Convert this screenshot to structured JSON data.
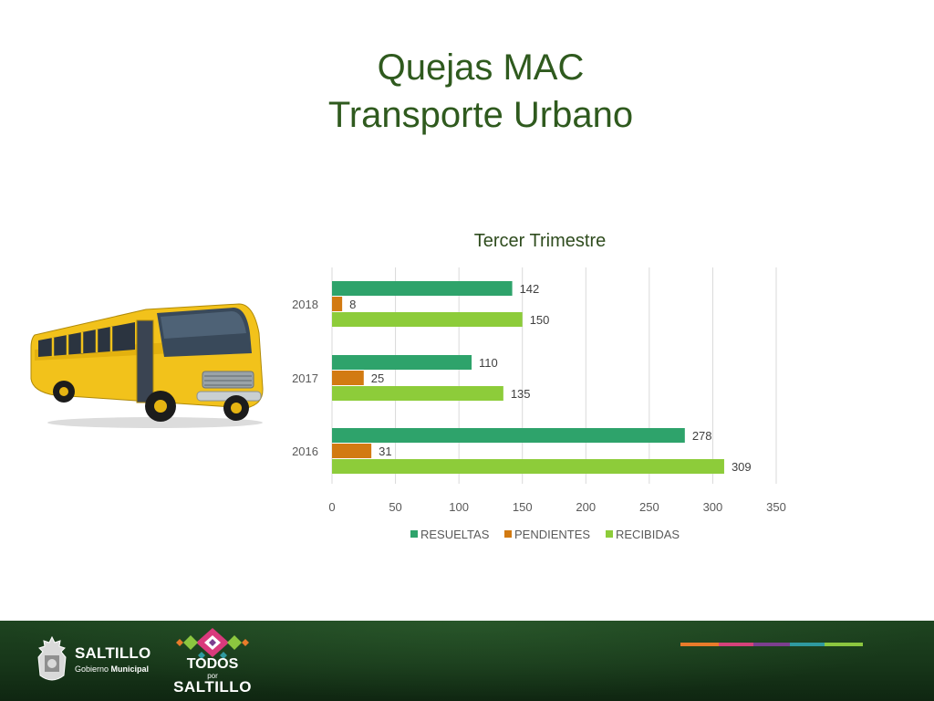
{
  "slide": {
    "title_line1": "Quejas MAC",
    "title_line2": "Transporte Urbano"
  },
  "chart_data": {
    "type": "bar",
    "orientation": "horizontal",
    "title": "Tercer Trimestre",
    "categories": [
      "2018",
      "2017",
      "2016"
    ],
    "series": [
      {
        "name": "RESUELTAS",
        "values": [
          142,
          110,
          278
        ],
        "color": "#2ea36b"
      },
      {
        "name": "PENDIENTES",
        "values": [
          8,
          25,
          31
        ],
        "color": "#d27a12"
      },
      {
        "name": "RECIBIDAS",
        "values": [
          150,
          135,
          309
        ],
        "color": "#8dcc3a"
      }
    ],
    "xlim": [
      0,
      350
    ],
    "xticks": [
      0,
      50,
      100,
      150,
      200,
      250,
      300,
      350
    ],
    "grid": "vertical",
    "legend": "bottom",
    "data_labels": true
  },
  "footer": {
    "brand_name": "SALTILLO",
    "brand_sub_a": "Gobierno",
    "brand_sub_b": "Municipal",
    "campaign_top": "TODOS",
    "campaign_mid": "por",
    "campaign_bottom": "SALTILLO",
    "stripe_colors": [
      "#e87b2a",
      "#d4427a",
      "#7c3f8f",
      "#2f9aa0",
      "#8cc63f"
    ]
  },
  "icons": {
    "bus": "school-bus-icon",
    "seal": "municipal-seal-icon",
    "campaign": "diamond-pattern-icon"
  }
}
